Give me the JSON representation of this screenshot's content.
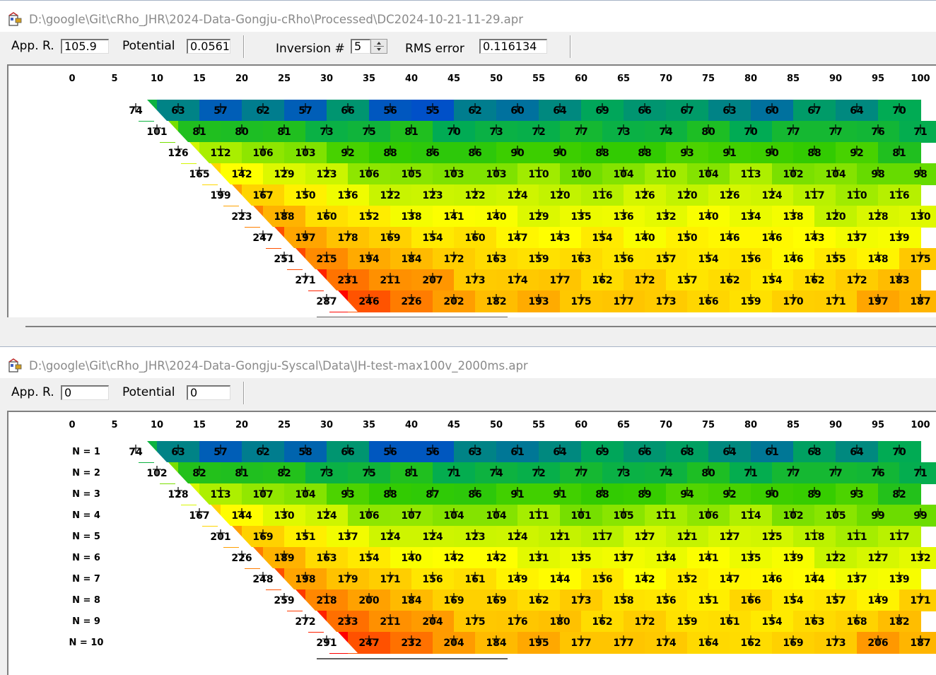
{
  "window1": {
    "title": "D:\\google\\Git\\cRho_JHR\\2024-Data-Gongju-cRho\\Processed\\DC2024-10-21-11-29.apr",
    "app_r_label": "App. R.",
    "app_r_value": "105.9",
    "potential_label": "Potential",
    "potential_value": "0.0561",
    "inversion_label": "Inversion #",
    "inversion_value": "5",
    "rms_label": "RMS error",
    "rms_value": "0.116134",
    "rows": [
      [
        74,
        63,
        57,
        62,
        57,
        66,
        56,
        55,
        62,
        60,
        64,
        69,
        66,
        67,
        63,
        60,
        67,
        64,
        70
      ],
      [
        101,
        81,
        80,
        81,
        73,
        75,
        81,
        70,
        73,
        72,
        77,
        73,
        74,
        80,
        70,
        77,
        77,
        76,
        71
      ],
      [
        126,
        112,
        106,
        103,
        92,
        88,
        86,
        86,
        90,
        90,
        88,
        88,
        93,
        91,
        90,
        88,
        92,
        81
      ],
      [
        165,
        142,
        129,
        123,
        106,
        105,
        103,
        103,
        110,
        100,
        104,
        110,
        104,
        113,
        102,
        104,
        98,
        98
      ],
      [
        199,
        167,
        150,
        136,
        122,
        123,
        122,
        124,
        120,
        116,
        126,
        120,
        126,
        124,
        117,
        110,
        116
      ],
      [
        223,
        188,
        160,
        152,
        138,
        141,
        140,
        129,
        135,
        136,
        132,
        140,
        134,
        138,
        120,
        128,
        130
      ],
      [
        247,
        197,
        178,
        169,
        154,
        160,
        147,
        143,
        154,
        140,
        150,
        146,
        146,
        143,
        137,
        139
      ],
      [
        251,
        215,
        194,
        184,
        172,
        163,
        159,
        163,
        156,
        157,
        154,
        156,
        146,
        155,
        148,
        175
      ],
      [
        271,
        231,
        211,
        207,
        173,
        174,
        177,
        162,
        172,
        157,
        162,
        154,
        162,
        172,
        183
      ],
      [
        287,
        246,
        226,
        202,
        182,
        193,
        175,
        177,
        173,
        166,
        159,
        170,
        171,
        197,
        187
      ]
    ]
  },
  "window2": {
    "title": "D:\\google\\Git\\cRho_JHR\\2024-Data-Gongju-Syscal\\Data\\JH-test-max100v_2000ms.apr",
    "app_r_label": "App. R.",
    "app_r_value": "0",
    "potential_label": "Potential",
    "potential_value": "0",
    "n_labels": [
      "N = 1",
      "N = 2",
      "N = 3",
      "N = 4",
      "N = 5",
      "N = 6",
      "N = 7",
      "N = 8",
      "N = 9",
      "N = 10"
    ],
    "rows": [
      [
        74,
        63,
        57,
        62,
        58,
        66,
        56,
        56,
        63,
        61,
        64,
        69,
        66,
        68,
        64,
        61,
        68,
        64,
        70
      ],
      [
        102,
        82,
        81,
        82,
        73,
        75,
        81,
        71,
        74,
        72,
        77,
        73,
        74,
        80,
        71,
        77,
        77,
        76,
        71
      ],
      [
        128,
        113,
        107,
        104,
        93,
        88,
        87,
        86,
        91,
        91,
        88,
        89,
        94,
        92,
        90,
        89,
        93,
        82
      ],
      [
        167,
        144,
        130,
        124,
        106,
        107,
        104,
        104,
        111,
        101,
        105,
        111,
        106,
        114,
        102,
        105,
        99,
        99
      ],
      [
        201,
        169,
        151,
        137,
        124,
        124,
        123,
        124,
        121,
        117,
        127,
        121,
        127,
        125,
        118,
        111,
        117
      ],
      [
        226,
        189,
        163,
        154,
        140,
        142,
        142,
        131,
        135,
        137,
        134,
        141,
        135,
        139,
        122,
        127,
        132
      ],
      [
        248,
        198,
        179,
        171,
        156,
        161,
        149,
        144,
        156,
        142,
        152,
        147,
        146,
        144,
        137,
        139
      ],
      [
        259,
        218,
        200,
        184,
        169,
        169,
        162,
        173,
        158,
        156,
        151,
        166,
        154,
        157,
        149,
        171
      ],
      [
        272,
        233,
        211,
        204,
        175,
        176,
        180,
        162,
        172,
        159,
        161,
        154,
        163,
        168,
        182
      ],
      [
        291,
        247,
        232,
        204,
        184,
        195,
        177,
        177,
        174,
        164,
        162,
        169,
        173,
        206,
        187
      ]
    ]
  },
  "axis_ticks": [
    "0",
    "5",
    "10",
    "15",
    "20",
    "25",
    "30",
    "35",
    "40",
    "45",
    "50",
    "55",
    "60",
    "65",
    "70",
    "75",
    "80",
    "85",
    "90",
    "95",
    "100"
  ],
  "colors": {
    "title_bg": "#ffffff",
    "title_text": "#8a8a8a",
    "window_bg": "#f0f0f0",
    "scale": [
      "#0050c8",
      "#00aa55",
      "#33cc00",
      "#aaee00",
      "#ffff00",
      "#ffc000",
      "#ff7800",
      "#ff0000"
    ]
  },
  "icons": {
    "app": "application-icon",
    "spinner": "spinner-icon"
  }
}
